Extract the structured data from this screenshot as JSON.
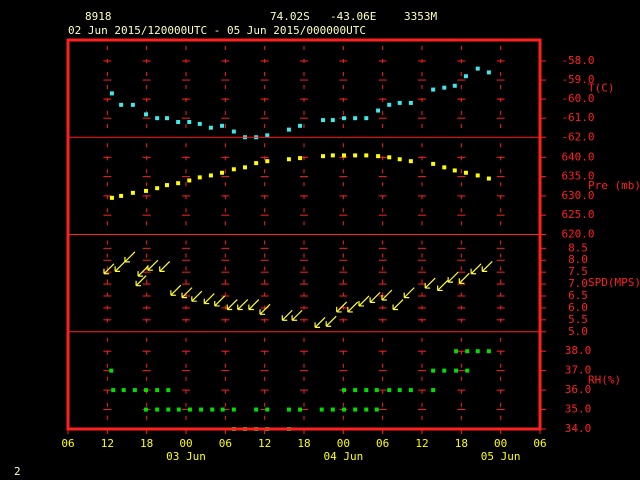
{
  "header": {
    "station": "8918",
    "lat": "74.02S",
    "lon": "-43.06E",
    "elev": "3353M",
    "period": "02 Jun 2015/120000UTC - 05 Jun 2015/000000UTC"
  },
  "page_number": "2",
  "chart_data": [
    {
      "type": "scatter",
      "marker": "square",
      "ylabel": "T(C)",
      "color": "#40e8e8",
      "ylim": [
        -62,
        -56.9
      ],
      "yticks": [
        {
          "value": -62,
          "label": "-62.0"
        },
        {
          "value": -61,
          "label": "-61.0"
        },
        {
          "value": -60,
          "label": "-60.0"
        },
        {
          "value": -59,
          "label": "-59.0"
        },
        {
          "value": -58,
          "label": "-58.0"
        }
      ],
      "x": [
        12.7,
        14.1,
        15.9,
        17.9,
        19.6,
        21.1,
        22.8,
        24.5,
        26.1,
        27.8,
        29.5,
        31.3,
        33.0,
        34.7,
        36.4,
        39.7,
        41.4,
        44.9,
        46.4,
        48.1,
        49.8,
        51.5,
        53.3,
        55.0,
        56.6,
        58.3,
        61.7,
        63.4,
        65.0,
        66.7,
        68.5,
        70.2
      ],
      "values": [
        -59.7,
        -60.3,
        -60.3,
        -60.8,
        -61.0,
        -61.0,
        -61.2,
        -61.2,
        -61.3,
        -61.5,
        -61.4,
        -61.7,
        -62.0,
        -62.0,
        -61.9,
        -61.6,
        -61.4,
        -61.1,
        -61.1,
        -61.0,
        -61.0,
        -61.0,
        -60.6,
        -60.3,
        -60.2,
        -60.2,
        -59.5,
        -59.4,
        -59.3,
        -58.8,
        -58.4,
        -58.6
      ]
    },
    {
      "type": "scatter",
      "marker": "square",
      "ylabel": "Pre (mb)",
      "color": "#ffff00",
      "ylim": [
        620,
        645.2
      ],
      "yticks": [
        {
          "value": 620,
          "label": "620.0"
        },
        {
          "value": 625,
          "label": "625.0"
        },
        {
          "value": 630,
          "label": "630.0"
        },
        {
          "value": 635,
          "label": "635.0"
        },
        {
          "value": 640,
          "label": "640.0"
        }
      ],
      "x": [
        12.7,
        14.1,
        15.9,
        17.9,
        19.6,
        21.1,
        22.8,
        24.5,
        26.1,
        27.8,
        29.5,
        31.3,
        33.0,
        34.7,
        36.4,
        39.7,
        41.4,
        44.9,
        46.4,
        48.1,
        49.8,
        51.5,
        53.3,
        55.0,
        56.6,
        58.3,
        61.7,
        63.4,
        65.0,
        66.7,
        68.5,
        70.2
      ],
      "values": [
        629.5,
        630,
        630.8,
        631.3,
        632,
        632.8,
        633.3,
        634,
        634.8,
        635.3,
        636,
        636.9,
        637.4,
        638.5,
        639,
        639.5,
        639.8,
        640.3,
        640.5,
        640.5,
        640.5,
        640.5,
        640.3,
        640,
        639.5,
        639,
        638.3,
        637.4,
        636.6,
        636,
        635.3,
        634.5
      ]
    },
    {
      "type": "scatter",
      "marker": "arrow",
      "ylabel": "SPD(MPS)",
      "color": "#ffff30",
      "ylim": [
        5.0,
        9.08
      ],
      "yticks": [
        {
          "value": 5,
          "label": "5.0"
        },
        5.5,
        {
          "value": 6,
          "label": "6.0"
        },
        6.5,
        {
          "value": 7,
          "label": "7.0"
        },
        7.5,
        {
          "value": 8,
          "label": "8.0"
        },
        8.5
      ],
      "x": [
        12.1,
        13.8,
        15.3,
        17.0,
        17.3,
        18.8,
        20.6,
        22.3,
        24.0,
        25.5,
        27.4,
        29.0,
        30.9,
        32.5,
        34.2,
        35.9,
        39.3,
        40.8,
        44.3,
        46.0,
        47.6,
        49.3,
        51.0,
        52.7,
        54.5,
        56.2,
        57.9,
        61.1,
        63.0,
        64.6,
        66.3,
        68.1,
        69.8
      ],
      "values": [
        7.6,
        7.7,
        8.1,
        7.1,
        7.5,
        7.75,
        7.7,
        6.7,
        6.6,
        6.45,
        6.35,
        6.25,
        6.1,
        6.1,
        6.1,
        5.9,
        5.65,
        5.65,
        5.35,
        5.4,
        6.0,
        6.0,
        6.25,
        6.4,
        6.5,
        6.1,
        6.6,
        7.0,
        6.9,
        7.25,
        7.2,
        7.6,
        7.7
      ]
    },
    {
      "type": "scatter",
      "marker": "square",
      "ylabel": "RH(%)",
      "color": "#00e000",
      "ylim": [
        34.0,
        39.0
      ],
      "yticks": [
        {
          "value": 34,
          "label": "34.0"
        },
        {
          "value": 35,
          "label": "35.0"
        },
        {
          "value": 36,
          "label": "36.0"
        },
        {
          "value": 37,
          "label": "37.0"
        },
        {
          "value": 38,
          "label": "38.0"
        }
      ],
      "x": [
        12.6,
        12.9,
        14.5,
        16.2,
        17.9,
        17.9,
        19.6,
        19.6,
        21.3,
        21.3,
        22.9,
        24.6,
        26.3,
        28.0,
        29.6,
        31.3,
        31.3,
        33.0,
        34.7,
        34.7,
        36.4,
        36.4,
        39.7,
        39.7,
        41.4,
        44.7,
        46.4,
        48.1,
        48.1,
        49.8,
        49.8,
        51.5,
        51.5,
        53.1,
        53.1,
        55.0,
        56.6,
        58.3,
        61.7,
        61.7,
        63.4,
        65.2,
        65.2,
        66.9,
        66.9,
        68.5,
        70.2
      ],
      "values": [
        37,
        36,
        36,
        36,
        35,
        36,
        35,
        36,
        35,
        36,
        35,
        35,
        35,
        35,
        35,
        35,
        34,
        34,
        35,
        34,
        35,
        34,
        35,
        34,
        35,
        35,
        35,
        35,
        36,
        35,
        36,
        35,
        36,
        35,
        36,
        36,
        36,
        36,
        37,
        36,
        37,
        37,
        38,
        37,
        38,
        38,
        38
      ],
      "xlim": [
        6,
        78
      ],
      "xticks": [
        {
          "value": 6,
          "label": "06"
        },
        12,
        18,
        {
          "value": 24,
          "label": "00"
        },
        {
          "value": 30,
          "label": "06"
        },
        {
          "value": 36,
          "label": "12"
        },
        {
          "value": 42,
          "label": "18"
        },
        {
          "value": 48,
          "label": "00"
        },
        {
          "value": 54,
          "label": "06"
        },
        {
          "value": 60,
          "label": "12"
        },
        {
          "value": 66,
          "label": "18"
        },
        {
          "value": 72,
          "label": "00"
        },
        {
          "value": 78,
          "label": "06"
        }
      ],
      "date_labels": [
        {
          "value": 24,
          "label": "03 Jun"
        },
        {
          "value": 48,
          "label": "04 Jun"
        },
        {
          "value": 72,
          "label": "05 Jun"
        }
      ]
    }
  ]
}
